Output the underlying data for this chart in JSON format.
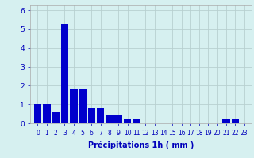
{
  "categories": [
    0,
    1,
    2,
    3,
    4,
    5,
    6,
    7,
    8,
    9,
    10,
    11,
    12,
    13,
    14,
    15,
    16,
    17,
    18,
    19,
    20,
    21,
    22,
    23
  ],
  "values": [
    1.0,
    1.0,
    0.6,
    5.3,
    1.8,
    1.8,
    0.8,
    0.8,
    0.4,
    0.4,
    0.25,
    0.25,
    0.0,
    0.0,
    0.0,
    0.0,
    0.0,
    0.0,
    0.0,
    0.0,
    0.0,
    0.2,
    0.2,
    0.0
  ],
  "bar_color": "#0000cc",
  "background_color": "#d6f0f0",
  "grid_color": "#b8d0d0",
  "xlabel": "Précipitations 1h ( mm )",
  "ylim": [
    0,
    6.3
  ],
  "yticks": [
    0,
    1,
    2,
    3,
    4,
    5,
    6
  ],
  "xlabel_fontsize": 7,
  "tick_fontsize": 5.5,
  "ytick_fontsize": 6.5,
  "bar_width": 0.85
}
